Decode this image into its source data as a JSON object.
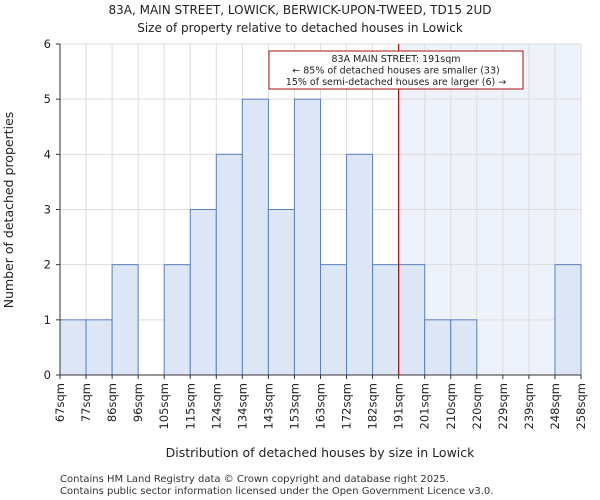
{
  "chart_data": {
    "type": "bar",
    "title": "83A, MAIN STREET, LOWICK, BERWICK-UPON-TWEED, TD15 2UD",
    "subtitle": "Size of property relative to detached houses in Lowick",
    "xlabel": "Distribution of detached houses by size in Lowick",
    "ylabel": "Number of detached properties",
    "bin_edges": [
      "67sqm",
      "77sqm",
      "86sqm",
      "96sqm",
      "105sqm",
      "115sqm",
      "124sqm",
      "134sqm",
      "143sqm",
      "153sqm",
      "163sqm",
      "172sqm",
      "182sqm",
      "191sqm",
      "201sqm",
      "210sqm",
      "220sqm",
      "229sqm",
      "239sqm",
      "248sqm",
      "258sqm"
    ],
    "values": [
      1,
      1,
      2,
      0,
      2,
      3,
      4,
      5,
      3,
      5,
      2,
      4,
      2,
      2,
      1,
      1,
      0,
      0,
      0,
      2
    ],
    "ylim": [
      0,
      6
    ],
    "yticks": [
      0,
      1,
      2,
      3,
      4,
      5,
      6
    ],
    "grid": true,
    "bar_color": "#dce6f5",
    "bar_edge_color": "#5b7fbf",
    "highlight_region_color": "#eef2fb",
    "marker": {
      "bin_index": 13,
      "color": "#aa1111",
      "annotation": [
        "83A MAIN STREET: 191sqm",
        "← 85% of detached houses are smaller (33)",
        "15% of semi-detached houses are larger (6) →"
      ]
    }
  },
  "footer": {
    "line1": "Contains HM Land Registry data © Crown copyright and database right 2025.",
    "line2": "Contains public sector information licensed under the Open Government Licence v3.0."
  }
}
